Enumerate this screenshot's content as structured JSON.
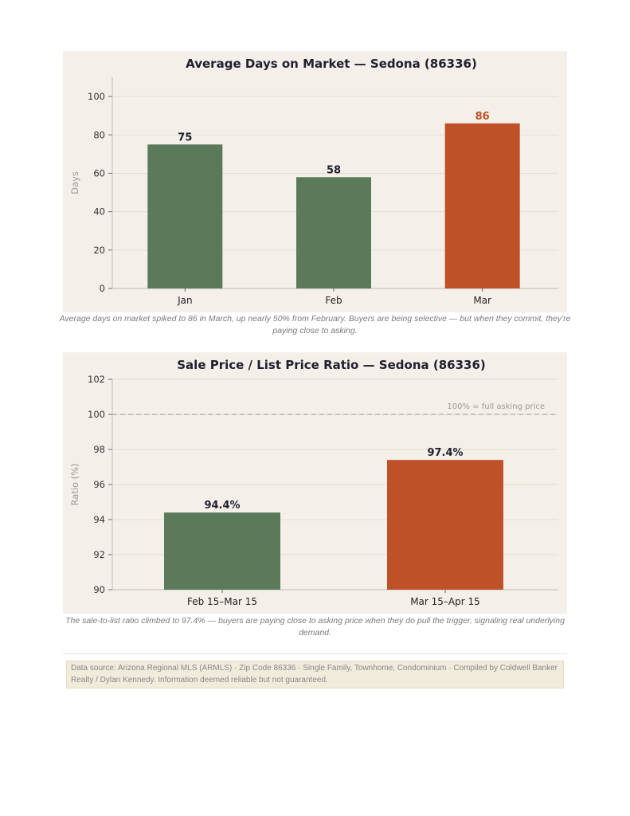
{
  "chart_data": [
    {
      "type": "bar",
      "title": "Average Days on Market — Sedona (86336)",
      "xlabel": "",
      "ylabel": "Days",
      "categories": [
        "Jan",
        "Feb",
        "Mar"
      ],
      "values": [
        75,
        58,
        86
      ],
      "data_labels": [
        "75",
        "58",
        "86"
      ],
      "ylim": [
        0,
        110
      ],
      "yticks": [
        0,
        20,
        40,
        60,
        80,
        100
      ],
      "colors": [
        "#5a7a5a",
        "#5a7a5a",
        "#bf5128"
      ],
      "label_colors": [
        "#1f1f2e",
        "#1f1f2e",
        "#bf5128"
      ],
      "grid": true,
      "caption": "Average days on market spiked to 86 in March, up nearly 50% from February. Buyers are being selective — but when they commit, they're paying close to asking."
    },
    {
      "type": "bar",
      "title": "Sale Price / List Price Ratio — Sedona (86336)",
      "xlabel": "",
      "ylabel": "Ratio (%)",
      "categories": [
        "Feb 15–Mar 15",
        "Mar 15–Apr 15"
      ],
      "values": [
        94.4,
        97.4
      ],
      "data_labels": [
        "94.4%",
        "97.4%"
      ],
      "ylim": [
        90,
        102
      ],
      "yticks": [
        90,
        92,
        94,
        96,
        98,
        100,
        102
      ],
      "colors": [
        "#5a7a5a",
        "#bf5128"
      ],
      "label_colors": [
        "#1f1f2e",
        "#1f1f2e"
      ],
      "grid": true,
      "reference_line": {
        "value": 100,
        "label": "100% = full asking price"
      },
      "caption": "The sale-to-list ratio climbed to 97.4% — buyers are paying close to asking price when they do pull the trigger, signaling real underlying demand."
    }
  ],
  "footer": {
    "text": "Data source: Arizona Regional MLS (ARMLS) · Zip Code 86336 · Single Family, Townhome, Condominium · Compiled by Coldwell Banker Realty / Dylan Kennedy. Information deemed reliable but not guaranteed."
  }
}
